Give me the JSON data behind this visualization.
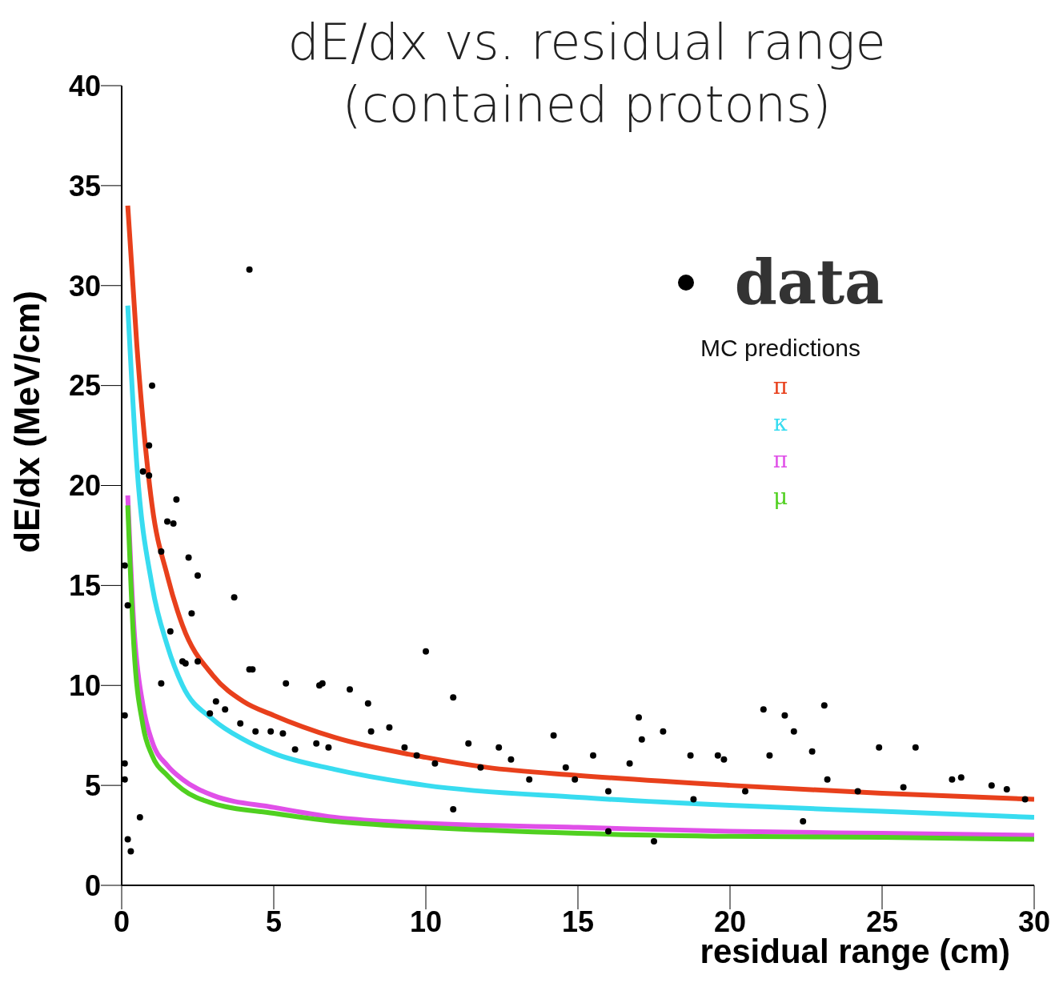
{
  "chart_data": {
    "type": "line",
    "title": "dE/dx vs. residual range\n(contained protons)",
    "xlabel": "residual range (cm)",
    "ylabel": "dE/dx (MeV/cm)",
    "legend_title": "MC predictions",
    "legend": "top right",
    "grid": false,
    "xlim": [
      0,
      30
    ],
    "ylim": [
      0,
      40
    ],
    "xticks": [
      0,
      5,
      10,
      15,
      20,
      25,
      30
    ],
    "yticks": [
      0,
      5,
      10,
      15,
      20,
      25,
      30,
      35,
      40
    ],
    "line_style": "solid",
    "series": [
      {
        "name": "data",
        "type": "scatter",
        "marker": "circle",
        "color": "#000000",
        "x": [
          4.2,
          1,
          0.9,
          0.7,
          0.9,
          1.8,
          1.5,
          1.7,
          0.1,
          2.2,
          1.3,
          2.5,
          3.7,
          0.2,
          2.3,
          1.6,
          2,
          2.1,
          2.5,
          4.2,
          4.3,
          7.5,
          10,
          10.9,
          5.4,
          6.5,
          6.6,
          0.1,
          3.1,
          3.4,
          2.9,
          3.9,
          4.4,
          4.9,
          5.3,
          5.7,
          6.4,
          6.8,
          8.1,
          8.2,
          8.8,
          9.3,
          9.7,
          10.3,
          10.9,
          11.4,
          11.8,
          12.4,
          12.8,
          13.4,
          14.2,
          14.6,
          14.9,
          15.5,
          16,
          16.7,
          17,
          17.1,
          17.5,
          17.8,
          18.7,
          19.6,
          19.8,
          21.1,
          21.3,
          21.8,
          22.1,
          22.7,
          23.1,
          23.2,
          24.9,
          25.7,
          26.1,
          27.3,
          27.6,
          28.6,
          29.1,
          29.7,
          0.6,
          0.2,
          0.3,
          0.1,
          1.3,
          0.1,
          20.5,
          24.2,
          18.8,
          22.4,
          16
        ],
        "values": [
          30.8,
          25,
          22,
          20.7,
          20.5,
          19.3,
          18.2,
          18.1,
          16,
          16.4,
          16.7,
          15.5,
          14.4,
          14,
          13.6,
          12.7,
          11.2,
          11.1,
          11.2,
          10.8,
          10.8,
          9.8,
          11.7,
          9.4,
          10.1,
          10,
          10.1,
          8.5,
          9.2,
          8.8,
          8.6,
          8.1,
          7.7,
          7.7,
          7.6,
          6.8,
          7.1,
          6.9,
          9.1,
          7.7,
          7.9,
          6.9,
          6.5,
          6.1,
          3.8,
          7.1,
          5.9,
          6.9,
          6.3,
          5.3,
          7.5,
          5.9,
          5.3,
          6.5,
          4.7,
          6.1,
          8.4,
          7.3,
          2.2,
          7.7,
          6.5,
          6.5,
          6.3,
          8.8,
          6.5,
          8.5,
          7.7,
          6.7,
          9,
          5.3,
          6.9,
          4.9,
          6.9,
          5.3,
          5.4,
          5,
          4.8,
          4.3,
          3.4,
          2.3,
          1.7,
          6.1,
          10.1,
          5.3,
          4.7,
          4.7,
          4.3,
          3.2,
          2.7
        ]
      },
      {
        "name": "π",
        "color": "#e8401c",
        "x": [
          0.2,
          0.5,
          1,
          1.5,
          2,
          3,
          4,
          5,
          7,
          10,
          12,
          15,
          20,
          25,
          30
        ],
        "values": [
          34,
          27,
          19,
          15.5,
          13,
          10.5,
          9.2,
          8.5,
          7.4,
          6.4,
          5.9,
          5.5,
          5,
          4.6,
          4.3
        ]
      },
      {
        "name": "κ",
        "color": "#38dcf0",
        "x": [
          0.2,
          0.5,
          1,
          1.5,
          2,
          3,
          4,
          5,
          7,
          10,
          15,
          20,
          25,
          30
        ],
        "values": [
          29,
          21,
          15,
          12,
          10,
          8.3,
          7.3,
          6.6,
          5.8,
          5,
          4.4,
          4,
          3.7,
          3.4
        ]
      },
      {
        "name": "π",
        "color": "#e050e8",
        "x": [
          0.2,
          0.4,
          0.7,
          1,
          1.5,
          2,
          3,
          5,
          7,
          10,
          15,
          20,
          25,
          30
        ],
        "values": [
          19.5,
          13,
          9,
          7.2,
          6,
          5.3,
          4.5,
          3.9,
          3.4,
          3.1,
          2.9,
          2.7,
          2.6,
          2.5
        ]
      },
      {
        "name": "μ",
        "color": "#50d020",
        "x": [
          0.2,
          0.4,
          0.7,
          1,
          1.5,
          2,
          3,
          5,
          7,
          10,
          15,
          20,
          25,
          30
        ],
        "values": [
          19,
          12,
          8,
          6.5,
          5.5,
          4.8,
          4.1,
          3.6,
          3.2,
          2.9,
          2.6,
          2.45,
          2.4,
          2.3
        ]
      }
    ]
  }
}
